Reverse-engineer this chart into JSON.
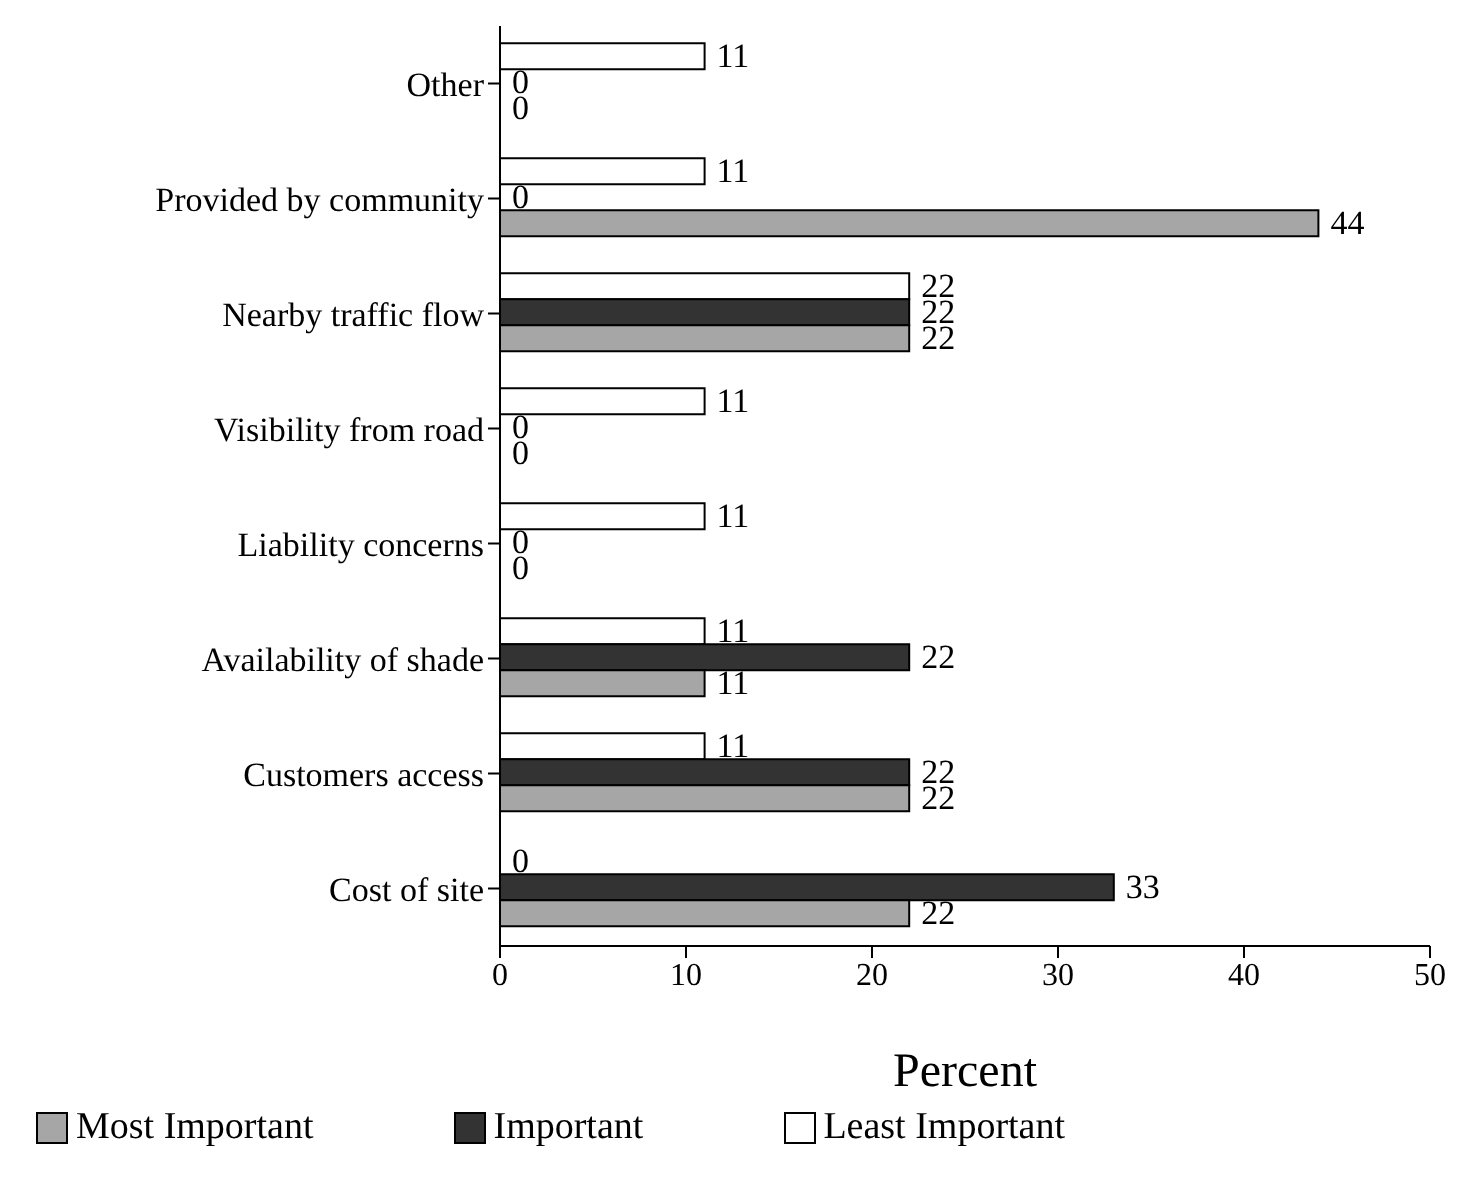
{
  "chart_data": {
    "type": "bar",
    "orientation": "horizontal",
    "xlabel": "Percent",
    "categories": [
      "Other",
      "Provided by community",
      "Nearby traffic flow",
      "Visibility from road",
      "Liability concerns",
      "Availability of shade",
      "Customers access",
      "Cost of site"
    ],
    "series": [
      {
        "name": "Most Important",
        "color": "#a6a6a6",
        "values": [
          0,
          44,
          22,
          0,
          0,
          11,
          22,
          22
        ]
      },
      {
        "name": "Important",
        "color": "#333333",
        "values": [
          0,
          0,
          22,
          0,
          0,
          22,
          22,
          33
        ]
      },
      {
        "name": "Least Important",
        "color": "#ffffff",
        "values": [
          11,
          11,
          22,
          11,
          11,
          11,
          11,
          0
        ]
      }
    ],
    "xlim": [
      0,
      50
    ],
    "xticks": [
      0,
      10,
      20,
      30,
      40,
      50
    ],
    "data_labels": true,
    "grid": false,
    "legend": "bottom"
  }
}
